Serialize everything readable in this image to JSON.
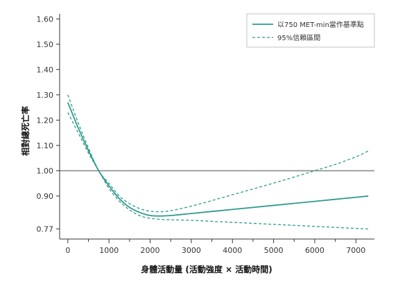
{
  "chart_data": {
    "type": "line",
    "xlabel": "身體活動量 (活動強度 × 活動時間)",
    "ylabel": "相對總死亡率",
    "xlim": [
      -200,
      7450
    ],
    "ylim": [
      0.73,
      1.62
    ],
    "x_ticks": [
      0,
      1000,
      2000,
      3000,
      4000,
      5000,
      6000,
      7000
    ],
    "y_ticks": [
      0.77,
      0.9,
      1.0,
      1.1,
      1.2,
      1.3,
      1.4,
      1.5,
      1.6
    ],
    "y_tick_labels": [
      "0.77",
      "0.90",
      "1.00",
      "1.10",
      "1.20",
      "1.30",
      "1.40",
      "1.50",
      "1.60"
    ],
    "reference_line": 1.0,
    "legend": {
      "position": "top-right",
      "entries": [
        {
          "label": "以750 MET-min當作基準點",
          "style": "solid"
        },
        {
          "label": "95%信賴區間",
          "style": "dashed"
        }
      ]
    },
    "colors": {
      "series": "#2e9a8c",
      "reference": "#8c8c8c",
      "axis": "#333333"
    },
    "series": [
      {
        "name": "以750 MET-min當作基準點",
        "style": "solid",
        "x": [
          0,
          250,
          500,
          750,
          1000,
          1250,
          1500,
          1750,
          2000,
          2250,
          2500,
          3000,
          3500,
          4000,
          4500,
          5000,
          5500,
          6000,
          6500,
          7000,
          7300
        ],
        "y": [
          1.27,
          1.17,
          1.08,
          1.0,
          0.94,
          0.89,
          0.855,
          0.835,
          0.823,
          0.821,
          0.823,
          0.831,
          0.839,
          0.847,
          0.855,
          0.863,
          0.871,
          0.879,
          0.887,
          0.895,
          0.9
        ]
      },
      {
        "name": "95%信賴區間 (上限)",
        "style": "dashed",
        "x": [
          0,
          250,
          500,
          750,
          1000,
          1250,
          1500,
          1750,
          2000,
          2250,
          2500,
          3000,
          3500,
          4000,
          4500,
          5000,
          5500,
          6000,
          6500,
          7000,
          7300
        ],
        "y": [
          1.3,
          1.19,
          1.09,
          1.0,
          0.95,
          0.9,
          0.87,
          0.85,
          0.84,
          0.838,
          0.842,
          0.86,
          0.882,
          0.905,
          0.928,
          0.951,
          0.975,
          1.0,
          1.025,
          1.055,
          1.078
        ]
      },
      {
        "name": "95%信賴區間 (下限)",
        "style": "dashed",
        "x": [
          0,
          250,
          500,
          750,
          1000,
          1250,
          1500,
          1750,
          2000,
          2250,
          2500,
          3000,
          3500,
          4000,
          4500,
          5000,
          5500,
          6000,
          6500,
          7000,
          7300
        ],
        "y": [
          1.23,
          1.15,
          1.07,
          1.0,
          0.93,
          0.88,
          0.845,
          0.822,
          0.812,
          0.808,
          0.806,
          0.804,
          0.8,
          0.796,
          0.792,
          0.788,
          0.784,
          0.78,
          0.776,
          0.772,
          0.77
        ]
      }
    ]
  }
}
